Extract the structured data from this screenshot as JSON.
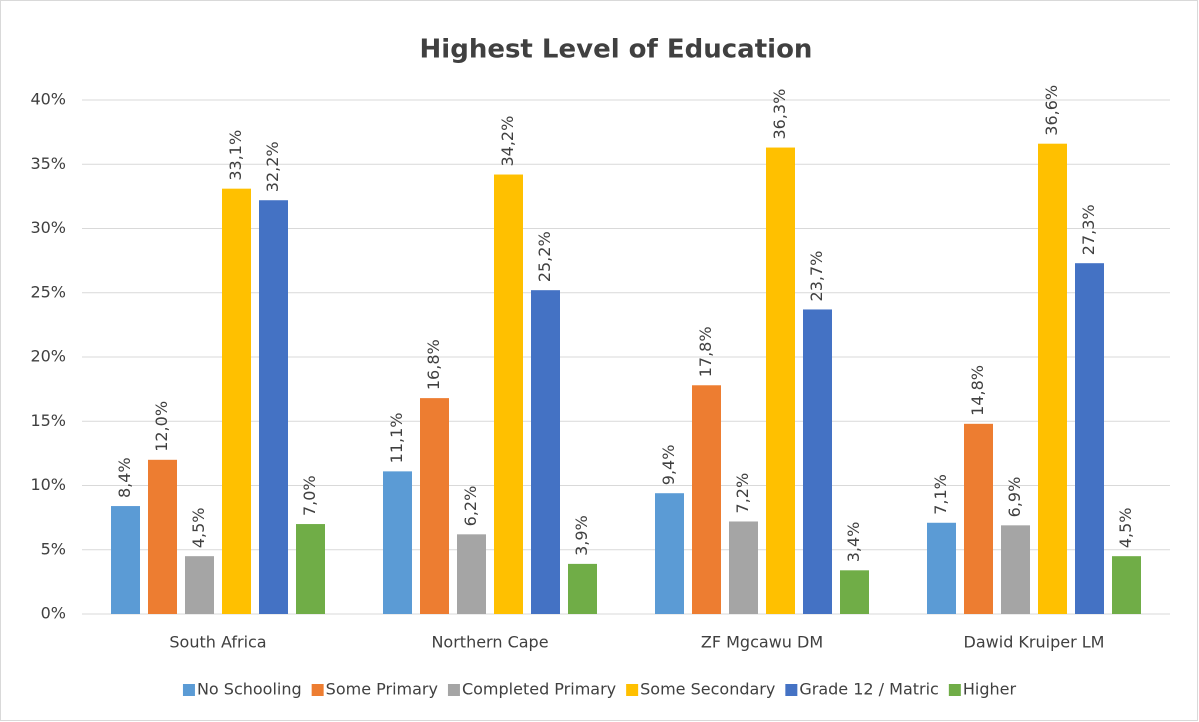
{
  "chart_data": {
    "type": "bar",
    "title": "Highest Level of Education",
    "categories": [
      "South Africa",
      "Northern Cape",
      "ZF Mgcawu DM",
      "Dawid Kruiper LM"
    ],
    "series": [
      {
        "name": "No Schooling",
        "color": "#5b9bd5",
        "values": [
          8.4,
          11.1,
          9.4,
          7.1
        ],
        "value_labels": [
          "8,4%",
          "11,1%",
          "9,4%",
          "7,1%"
        ]
      },
      {
        "name": "Some Primary",
        "color": "#ed7d31",
        "values": [
          12.0,
          16.8,
          17.8,
          14.8
        ],
        "value_labels": [
          "12,0%",
          "16,8%",
          "17,8%",
          "14,8%"
        ]
      },
      {
        "name": "Completed Primary",
        "color": "#a5a5a5",
        "values": [
          4.5,
          6.2,
          7.2,
          6.9
        ],
        "value_labels": [
          "4,5%",
          "6,2%",
          "7,2%",
          "6,9%"
        ]
      },
      {
        "name": "Some Secondary",
        "color": "#ffc000",
        "values": [
          33.1,
          34.2,
          36.3,
          36.6
        ],
        "value_labels": [
          "33,1%",
          "34,2%",
          "36,3%",
          "36,6%"
        ]
      },
      {
        "name": "Grade 12 / Matric",
        "color": "#4472c4",
        "values": [
          32.2,
          25.2,
          23.7,
          27.3
        ],
        "value_labels": [
          "32,2%",
          "25,2%",
          "23,7%",
          "27,3%"
        ]
      },
      {
        "name": "Higher",
        "color": "#70ad47",
        "values": [
          7.0,
          3.9,
          3.4,
          4.5
        ],
        "value_labels": [
          "7,0%",
          "3,9%",
          "3,4%",
          "4,5%"
        ]
      }
    ],
    "ylim": [
      0,
      40
    ],
    "yticks": [
      {
        "value": 0,
        "label": "0%"
      },
      {
        "value": 5,
        "label": "5%"
      },
      {
        "value": 10,
        "label": "10%"
      },
      {
        "value": 15,
        "label": "15%"
      },
      {
        "value": 20,
        "label": "20%"
      },
      {
        "value": 25,
        "label": "25%"
      },
      {
        "value": 30,
        "label": "30%"
      },
      {
        "value": 35,
        "label": "35%"
      },
      {
        "value": 40,
        "label": "40%"
      }
    ],
    "grid": true,
    "legend": "bottom"
  }
}
